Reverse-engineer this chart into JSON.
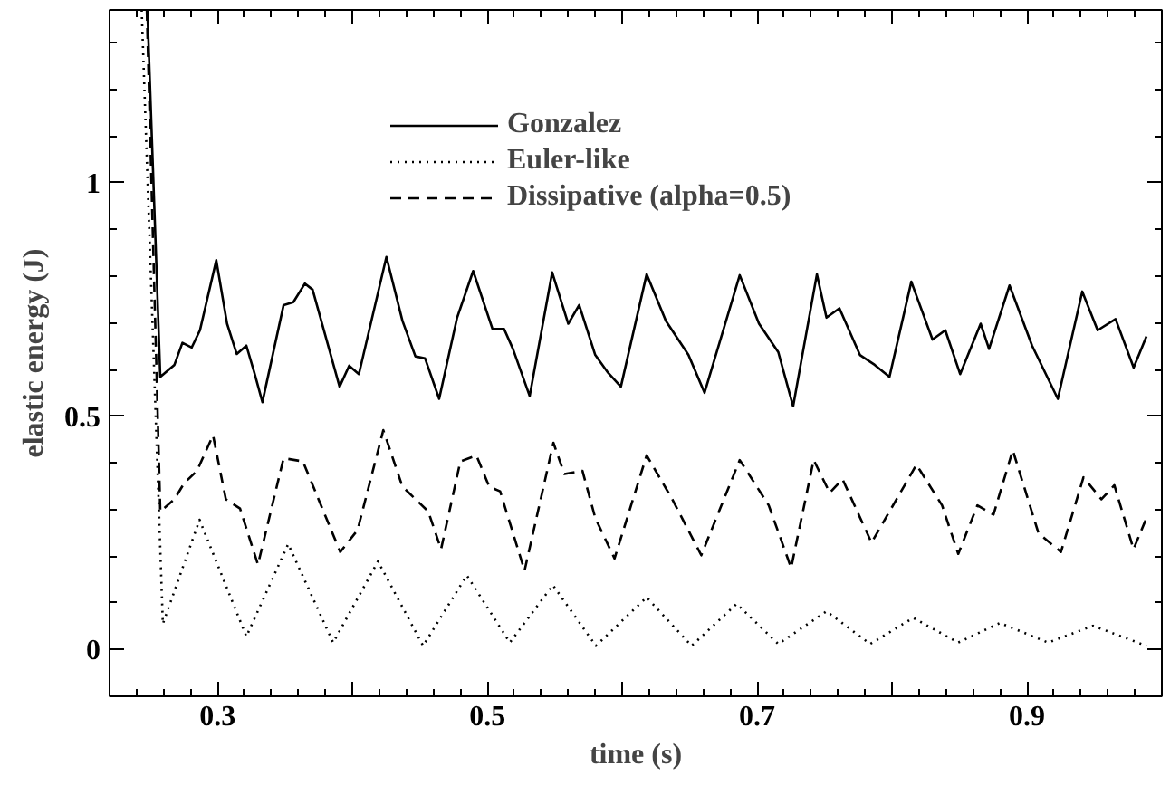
{
  "chart_data": {
    "type": "line",
    "xlabel": "time (s)",
    "ylabel": "elastic energy (J)",
    "xlim": [
      0.22,
      1.0
    ],
    "ylim": [
      -0.1,
      1.37
    ],
    "xticks": [
      0.3,
      {
        "value": 0.4,
        "label": null
      },
      0.5,
      {
        "value": 0.6,
        "label": null
      },
      0.7,
      {
        "value": 0.8,
        "label": null
      },
      0.9,
      {
        "value": 1.0,
        "label": null
      }
    ],
    "yticks": [
      0,
      0.5,
      1
    ],
    "grid": false,
    "legend": "top right",
    "marker": "none",
    "series": [
      {
        "name": "Gonzalez",
        "color": "#000000",
        "line_style": "solid",
        "x": [
          0.248,
          0.2576,
          0.2681,
          0.274,
          0.2809,
          0.287,
          0.2991,
          0.3071,
          0.3143,
          0.3214,
          0.3276,
          0.3333,
          0.349,
          0.3562,
          0.3648,
          0.3705,
          0.3905,
          0.3976,
          0.4048,
          0.4252,
          0.4371,
          0.4467,
          0.4538,
          0.4643,
          0.4776,
          0.4895,
          0.5038,
          0.5124,
          0.519,
          0.5314,
          0.5481,
          0.56,
          0.5681,
          0.58,
          0.5895,
          0.599,
          0.6181,
          0.6324,
          0.6491,
          0.661,
          0.6871,
          0.7014,
          0.7157,
          0.7267,
          0.7443,
          0.7514,
          0.761,
          0.7762,
          0.7871,
          0.7981,
          0.8143,
          0.83,
          0.8395,
          0.8505,
          0.8657,
          0.8719,
          0.8871,
          0.9038,
          0.9229,
          0.941,
          0.9524,
          0.9657,
          0.9791,
          0.9886
        ],
        "values": [
          1.37,
          0.584,
          0.61,
          0.657,
          0.647,
          0.684,
          0.834,
          0.698,
          0.633,
          0.651,
          0.59,
          0.53,
          0.738,
          0.744,
          0.784,
          0.771,
          0.563,
          0.608,
          0.59,
          0.841,
          0.704,
          0.628,
          0.624,
          0.537,
          0.711,
          0.811,
          0.687,
          0.687,
          0.644,
          0.543,
          0.808,
          0.698,
          0.738,
          0.631,
          0.593,
          0.563,
          0.804,
          0.704,
          0.631,
          0.55,
          0.802,
          0.698,
          0.637,
          0.521,
          0.804,
          0.711,
          0.731,
          0.631,
          0.61,
          0.584,
          0.788,
          0.664,
          0.684,
          0.59,
          0.698,
          0.644,
          0.78,
          0.651,
          0.537,
          0.767,
          0.684,
          0.708,
          0.604,
          0.671
        ]
      },
      {
        "name": "Euler-like",
        "color": "#000000",
        "line_style": "dotted",
        "x": [
          0.2438,
          0.2595,
          0.2867,
          0.3214,
          0.3524,
          0.3857,
          0.419,
          0.4524,
          0.4848,
          0.5167,
          0.5486,
          0.5805,
          0.6181,
          0.6514,
          0.6848,
          0.7157,
          0.7514,
          0.7838,
          0.8157,
          0.849,
          0.88,
          0.9157,
          0.949,
          0.9886
        ],
        "values": [
          1.37,
          0.055,
          0.278,
          0.028,
          0.226,
          0.015,
          0.189,
          0.008,
          0.159,
          0.015,
          0.138,
          0.008,
          0.112,
          0.008,
          0.098,
          0.012,
          0.082,
          0.012,
          0.068,
          0.015,
          0.057,
          0.015,
          0.051,
          0.008
        ]
      },
      {
        "name": "Dissipative (alpha=0.5)",
        "color": "#000000",
        "line_style": "dashed",
        "x": [
          0.2476,
          0.2576,
          0.2681,
          0.2752,
          0.2848,
          0.2967,
          0.3062,
          0.3167,
          0.33,
          0.349,
          0.3633,
          0.391,
          0.4038,
          0.4229,
          0.4371,
          0.4562,
          0.4657,
          0.48,
          0.4919,
          0.5014,
          0.5095,
          0.5276,
          0.549,
          0.5571,
          0.5705,
          0.58,
          0.5943,
          0.6181,
          0.6371,
          0.6586,
          0.6871,
          0.7086,
          0.7252,
          0.7419,
          0.7538,
          0.7633,
          0.7848,
          0.8181,
          0.8371,
          0.8491,
          0.8633,
          0.8752,
          0.8895,
          0.9086,
          0.9252,
          0.9419,
          0.9552,
          0.9648,
          0.979,
          0.9886
        ],
        "values": [
          1.37,
          0.296,
          0.322,
          0.356,
          0.383,
          0.459,
          0.322,
          0.302,
          0.182,
          0.41,
          0.403,
          0.209,
          0.256,
          0.47,
          0.349,
          0.296,
          0.215,
          0.403,
          0.416,
          0.349,
          0.339,
          0.169,
          0.443,
          0.376,
          0.383,
          0.282,
          0.195,
          0.416,
          0.322,
          0.202,
          0.406,
          0.309,
          0.175,
          0.406,
          0.336,
          0.365,
          0.229,
          0.396,
          0.309,
          0.205,
          0.309,
          0.289,
          0.427,
          0.249,
          0.209,
          0.369,
          0.322,
          0.352,
          0.215,
          0.282
        ]
      }
    ]
  }
}
